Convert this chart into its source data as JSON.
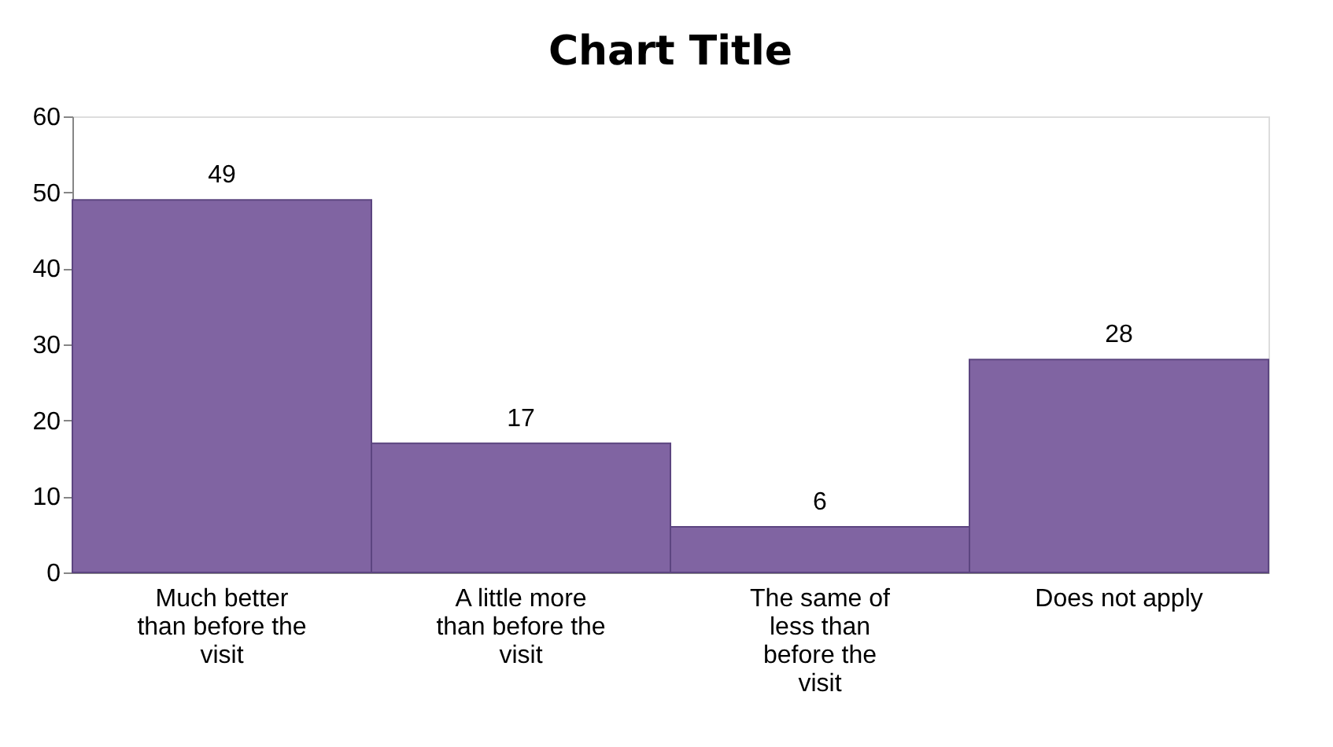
{
  "chart_data": {
    "type": "bar",
    "title": "Chart Title",
    "categories": [
      "Much better than before the visit",
      "A little more than before the visit",
      "The same of less than before the visit",
      "Does not apply"
    ],
    "values": [
      49,
      17,
      6,
      28
    ],
    "color": "#8064a2",
    "ylim": [
      0,
      60
    ],
    "yticks": [
      0,
      10,
      20,
      30,
      40,
      50,
      60
    ],
    "grid": false,
    "data_labels": true
  }
}
